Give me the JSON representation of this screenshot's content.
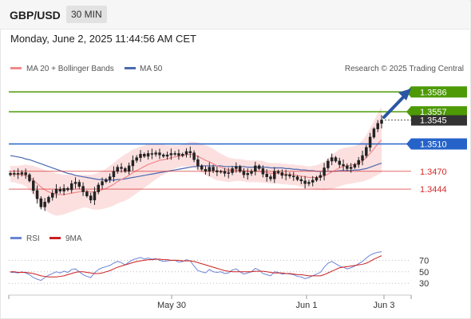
{
  "header": {
    "pair": "GBP/USD",
    "timeframe": "30 MIN"
  },
  "timestamp": "Monday, June 2, 2025 11:44:56 AM CET",
  "legend": {
    "ma20": "MA 20 + Bollinger Bands",
    "ma50": "MA 50",
    "rsi": "RSI",
    "rsi_ma": "9MA"
  },
  "credit": "Research © 2025 Trading Central",
  "colors": {
    "up_level": "#4d9a06",
    "pivot": "#2563c9",
    "down_level": "#d42a2a",
    "current": "#333333",
    "ma20": "#f08a8a",
    "ma50": "#4b6ab0",
    "bands": "#fbd3d3",
    "candle": "#222222",
    "rsi": "#6a84d6",
    "rsi_ma": "#cc1f1f"
  },
  "chart_data": {
    "type": "candlestick",
    "price_axis": {
      "min": 1.3394,
      "max": 1.3612
    },
    "levels": [
      {
        "label": "1.3586",
        "value": 1.3586,
        "kind": "resistance"
      },
      {
        "label": "1.3557",
        "value": 1.3557,
        "kind": "resistance"
      },
      {
        "label": "1.3545",
        "value": 1.3545,
        "kind": "current"
      },
      {
        "label": "1.3510",
        "value": 1.351,
        "kind": "pivot"
      },
      {
        "label": "1.3470",
        "value": 1.347,
        "kind": "support"
      },
      {
        "label": "1.3444",
        "value": 1.3444,
        "kind": "support"
      }
    ],
    "x_ticks": [
      "May 30",
      "Jun 1",
      "Jun 3"
    ],
    "close": [
      1.3467,
      1.3467,
      1.3466,
      1.3468,
      1.3465,
      1.3456,
      1.3442,
      1.343,
      1.3418,
      1.3425,
      1.3432,
      1.3438,
      1.3444,
      1.3441,
      1.3445,
      1.3443,
      1.3452,
      1.3454,
      1.3448,
      1.344,
      1.3434,
      1.3428,
      1.344,
      1.345,
      1.3455,
      1.3458,
      1.3462,
      1.347,
      1.3476,
      1.3474,
      1.347,
      1.3478,
      1.3486,
      1.349,
      1.3495,
      1.3492,
      1.3496,
      1.3495,
      1.3497,
      1.3494,
      1.3492,
      1.3494,
      1.3496,
      1.3496,
      1.3493,
      1.3495,
      1.3499,
      1.3497,
      1.3487,
      1.3478,
      1.3473,
      1.347,
      1.3476,
      1.3471,
      1.3469,
      1.347,
      1.3467,
      1.3468,
      1.3474,
      1.3477,
      1.347,
      1.3465,
      1.3467,
      1.347,
      1.3478,
      1.3474,
      1.3466,
      1.3462,
      1.3459,
      1.347,
      1.3468,
      1.3464,
      1.3465,
      1.3463,
      1.3462,
      1.3458,
      1.3456,
      1.3452,
      1.3454,
      1.3457,
      1.3461,
      1.3464,
      1.3475,
      1.3485,
      1.349,
      1.3485,
      1.348,
      1.3478,
      1.3474,
      1.3476,
      1.348,
      1.3486,
      1.3493,
      1.3505,
      1.352,
      1.3532,
      1.354,
      1.3545
    ],
    "ma20": [
      1.3466,
      1.3466,
      1.3465,
      1.3465,
      1.3464,
      1.3461,
      1.3457,
      1.3452,
      1.3447,
      1.3443,
      1.344,
      1.3438,
      1.3436,
      1.3436,
      1.3436,
      1.3437,
      1.3438,
      1.3439,
      1.344,
      1.3441,
      1.3441,
      1.344,
      1.344,
      1.3441,
      1.3443,
      1.3445,
      1.3448,
      1.3451,
      1.3455,
      1.3458,
      1.3461,
      1.3464,
      1.3468,
      1.3471,
      1.3474,
      1.3477,
      1.348,
      1.3482,
      1.3484,
      1.3486,
      1.3487,
      1.3488,
      1.349,
      1.3491,
      1.3492,
      1.3493,
      1.3494,
      1.3495,
      1.3494,
      1.3492,
      1.3489,
      1.3486,
      1.3484,
      1.3481,
      1.3478,
      1.3476,
      1.3474,
      1.3472,
      1.3472,
      1.3472,
      1.3472,
      1.3471,
      1.347,
      1.347,
      1.347,
      1.347,
      1.3469,
      1.3468,
      1.3467,
      1.3467,
      1.3467,
      1.3466,
      1.3466,
      1.3465,
      1.3465,
      1.3464,
      1.3463,
      1.3462,
      1.3461,
      1.3461,
      1.3461,
      1.3462,
      1.3463,
      1.3466,
      1.3469,
      1.3472,
      1.3475,
      1.3477,
      1.3478,
      1.3479,
      1.348,
      1.3482,
      1.3485,
      1.349,
      1.3496,
      1.3503,
      1.351,
      1.3516
    ],
    "ma50": [
      1.3493,
      1.3492,
      1.3491,
      1.349,
      1.3488,
      1.3487,
      1.3485,
      1.3483,
      1.3481,
      1.3479,
      1.3477,
      1.3475,
      1.3473,
      1.3471,
      1.3469,
      1.3467,
      1.3466,
      1.3464,
      1.3463,
      1.3462,
      1.3461,
      1.346,
      1.3459,
      1.3458,
      1.3458,
      1.3457,
      1.3457,
      1.3457,
      1.3458,
      1.3458,
      1.3459,
      1.346,
      1.3461,
      1.3462,
      1.3463,
      1.3464,
      1.3465,
      1.3466,
      1.3467,
      1.3468,
      1.3469,
      1.347,
      1.3471,
      1.3472,
      1.3473,
      1.3474,
      1.3475,
      1.3476,
      1.3477,
      1.3477,
      1.3478,
      1.3478,
      1.3478,
      1.3478,
      1.3478,
      1.3478,
      1.3477,
      1.3477,
      1.3477,
      1.3477,
      1.3477,
      1.3477,
      1.3476,
      1.3476,
      1.3476,
      1.3476,
      1.3476,
      1.3476,
      1.3475,
      1.3475,
      1.3475,
      1.3475,
      1.3474,
      1.3474,
      1.3473,
      1.3473,
      1.3472,
      1.3472,
      1.3471,
      1.3471,
      1.347,
      1.347,
      1.347,
      1.347,
      1.347,
      1.347,
      1.3471,
      1.3471,
      1.3471,
      1.3471,
      1.3472,
      1.3472,
      1.3473,
      1.3474,
      1.3476,
      1.3478,
      1.348,
      1.3482
    ],
    "bb_width": [
      0.0012,
      0.0012,
      0.0013,
      0.0014,
      0.0016,
      0.0018,
      0.0021,
      0.0024,
      0.0027,
      0.0029,
      0.003,
      0.0031,
      0.0031,
      0.003,
      0.0029,
      0.0028,
      0.0027,
      0.0026,
      0.0025,
      0.0024,
      0.0024,
      0.0025,
      0.0026,
      0.0027,
      0.0028,
      0.0029,
      0.003,
      0.0031,
      0.0032,
      0.0033,
      0.0034,
      0.0034,
      0.0034,
      0.0033,
      0.0032,
      0.0031,
      0.003,
      0.0028,
      0.0026,
      0.0024,
      0.0022,
      0.002,
      0.0018,
      0.0017,
      0.0016,
      0.0016,
      0.0017,
      0.0018,
      0.0019,
      0.002,
      0.0021,
      0.0022,
      0.0022,
      0.0022,
      0.0021,
      0.002,
      0.0019,
      0.0018,
      0.0017,
      0.0016,
      0.0016,
      0.0016,
      0.0016,
      0.0016,
      0.0016,
      0.0016,
      0.0016,
      0.0015,
      0.0015,
      0.0015,
      0.0015,
      0.0015,
      0.0015,
      0.0015,
      0.0015,
      0.0015,
      0.0016,
      0.0016,
      0.0016,
      0.0017,
      0.0018,
      0.0019,
      0.0021,
      0.0023,
      0.0025,
      0.0026,
      0.0027,
      0.0027,
      0.0027,
      0.0027,
      0.0027,
      0.0028,
      0.003,
      0.0033,
      0.0037,
      0.0041,
      0.0045,
      0.0048
    ],
    "rsi": {
      "axis_ticks": [
        70,
        50,
        30
      ],
      "values": [
        49,
        49,
        48,
        50,
        48,
        45,
        40,
        37,
        35,
        40,
        44,
        47,
        50,
        48,
        51,
        49,
        54,
        55,
        50,
        45,
        42,
        40,
        48,
        54,
        57,
        59,
        61,
        65,
        68,
        66,
        62,
        67,
        71,
        73,
        75,
        72,
        74,
        72,
        73,
        70,
        68,
        69,
        70,
        70,
        67,
        68,
        71,
        69,
        60,
        52,
        50,
        48,
        54,
        50,
        49,
        50,
        47,
        48,
        53,
        55,
        50,
        46,
        48,
        50,
        56,
        53,
        47,
        45,
        43,
        50,
        49,
        46,
        47,
        46,
        45,
        42,
        41,
        38,
        40,
        43,
        46,
        49,
        58,
        65,
        68,
        64,
        60,
        58,
        55,
        57,
        60,
        64,
        68,
        74,
        79,
        82,
        84,
        85
      ],
      "ma": [
        50,
        50,
        49,
        49,
        49,
        48,
        47,
        45,
        43,
        42,
        41,
        41,
        41,
        42,
        43,
        45,
        47,
        49,
        50,
        50,
        49,
        48,
        47,
        47,
        48,
        50,
        52,
        55,
        58,
        60,
        62,
        64,
        66,
        68,
        69,
        70,
        71,
        71,
        72,
        72,
        71,
        71,
        70,
        70,
        70,
        69,
        69,
        69,
        68,
        66,
        64,
        62,
        60,
        58,
        56,
        54,
        52,
        51,
        50,
        50,
        50,
        50,
        50,
        50,
        51,
        51,
        51,
        50,
        49,
        48,
        48,
        48,
        47,
        47,
        46,
        45,
        45,
        44,
        43,
        43,
        43,
        43,
        45,
        48,
        51,
        54,
        57,
        58,
        59,
        60,
        61,
        62,
        63,
        65,
        68,
        72,
        75,
        78
      ]
    }
  }
}
